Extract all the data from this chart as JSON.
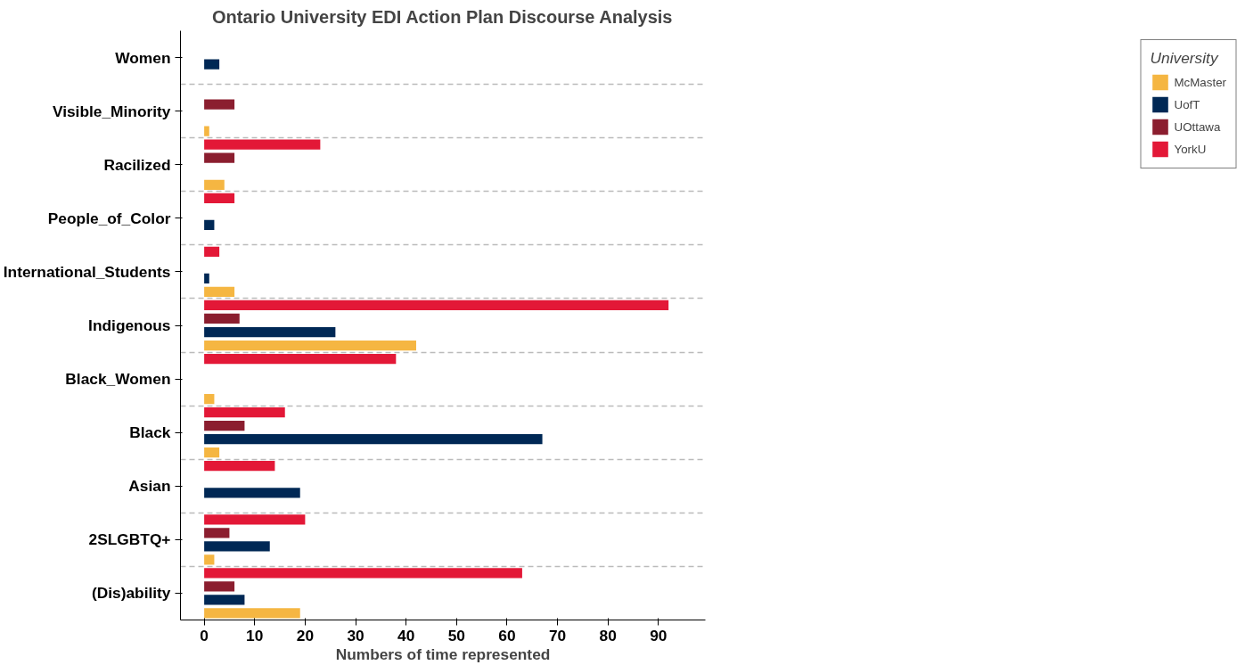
{
  "chart_data": {
    "type": "bar",
    "orientation": "horizontal",
    "title": "Ontario University EDI Action Plan Discourse Analysis",
    "xlabel": "Numbers of time represented",
    "legend_title": "University",
    "categories": [
      "Women",
      "Visible_Minority",
      "Racilized",
      "People_of_Color",
      "International_Students",
      "Indigenous",
      "Black_Women",
      "Black",
      "Asian",
      "2SLGBTQ+",
      "(Dis)ability"
    ],
    "series": [
      {
        "name": "McMaster",
        "color": "#f5b642",
        "values": [
          null,
          1,
          4,
          null,
          6,
          42,
          2,
          3,
          null,
          2,
          19
        ]
      },
      {
        "name": "UofT",
        "color": "#002855",
        "values": [
          3,
          null,
          null,
          2,
          1,
          26,
          null,
          67,
          19,
          13,
          8
        ]
      },
      {
        "name": "UOttawa",
        "color": "#8b1e2f",
        "values": [
          null,
          6,
          6,
          null,
          null,
          7,
          null,
          8,
          null,
          5,
          6
        ]
      },
      {
        "name": "YorkU",
        "color": "#e31837",
        "values": [
          null,
          null,
          23,
          6,
          3,
          92,
          38,
          16,
          14,
          20,
          63
        ]
      }
    ],
    "xlim": [
      -4.7,
      99.3
    ],
    "xticks": [
      0,
      10,
      20,
      30,
      40,
      50,
      60,
      70,
      80,
      90
    ],
    "grid": "y",
    "legend": "right"
  }
}
